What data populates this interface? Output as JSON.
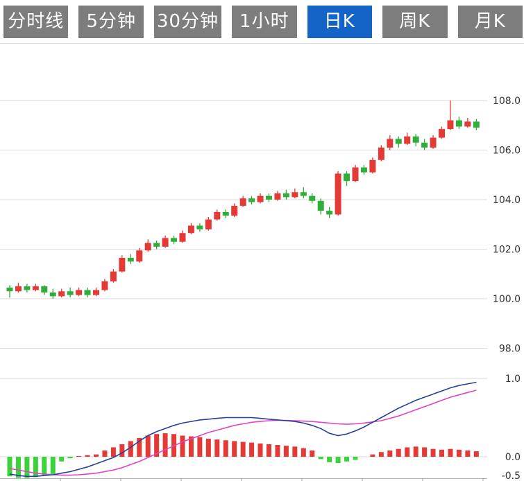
{
  "toolbar": {
    "tabs": [
      {
        "label": "分时线",
        "active": false
      },
      {
        "label": "5分钟",
        "active": false
      },
      {
        "label": "30分钟",
        "active": false
      },
      {
        "label": "1小时",
        "active": false
      },
      {
        "label": "日K",
        "active": true
      },
      {
        "label": "周K",
        "active": false
      },
      {
        "label": "月K",
        "active": false
      }
    ],
    "active_bg": "#1464c8",
    "inactive_bg": "#7d7d7d",
    "text_color": "#ffffff"
  },
  "chart_data": {
    "type": "candlestick+macd",
    "convention": "red = up (close >= open), green = down",
    "price_axis": {
      "values": [
        108,
        106,
        104,
        102,
        100,
        98
      ],
      "labels": [
        "108.0",
        "106.0",
        "104.0",
        "102.0",
        "100.0",
        "98.0"
      ]
    },
    "macd_axis": {
      "values": [
        1.0,
        0.0,
        -0.5
      ],
      "labels": [
        "1.0",
        "0.0",
        "-0.5"
      ]
    },
    "colors": {
      "up": "#e53935",
      "down": "#2fae3a",
      "hist_up": "#e53935",
      "hist_down": "#3bd23b",
      "dif_line": "#24409a",
      "dea_line": "#e044c4",
      "grid": "#d9d9d9",
      "axis": "#b5b5b5",
      "label": "#333333"
    },
    "candles": [
      [
        100.45,
        100.55,
        100.05,
        100.3
      ],
      [
        100.3,
        100.65,
        100.25,
        100.5
      ],
      [
        100.5,
        100.6,
        100.25,
        100.35
      ],
      [
        100.35,
        100.6,
        100.3,
        100.5
      ],
      [
        100.5,
        100.55,
        100.15,
        100.25
      ],
      [
        100.25,
        100.4,
        100.0,
        100.1
      ],
      [
        100.1,
        100.4,
        100.05,
        100.3
      ],
      [
        100.3,
        100.45,
        100.05,
        100.15
      ],
      [
        100.15,
        100.45,
        100.1,
        100.35
      ],
      [
        100.35,
        100.45,
        100.05,
        100.15
      ],
      [
        100.15,
        100.45,
        100.1,
        100.35
      ],
      [
        100.35,
        100.8,
        100.3,
        100.7
      ],
      [
        100.7,
        101.2,
        100.65,
        101.1
      ],
      [
        101.1,
        101.75,
        101.05,
        101.65
      ],
      [
        101.65,
        101.8,
        101.4,
        101.5
      ],
      [
        101.5,
        102.05,
        101.45,
        101.95
      ],
      [
        101.95,
        102.4,
        101.9,
        102.25
      ],
      [
        102.25,
        102.35,
        102.0,
        102.1
      ],
      [
        102.1,
        102.55,
        102.05,
        102.45
      ],
      [
        102.45,
        102.55,
        102.2,
        102.3
      ],
      [
        102.3,
        102.75,
        102.25,
        102.65
      ],
      [
        102.65,
        103.05,
        102.6,
        102.95
      ],
      [
        102.95,
        103.05,
        102.7,
        102.8
      ],
      [
        102.8,
        103.3,
        102.75,
        103.2
      ],
      [
        103.2,
        103.6,
        103.15,
        103.5
      ],
      [
        103.5,
        103.6,
        103.25,
        103.35
      ],
      [
        103.35,
        103.85,
        103.3,
        103.75
      ],
      [
        103.75,
        104.15,
        103.7,
        104.05
      ],
      [
        104.05,
        104.15,
        103.8,
        103.9
      ],
      [
        103.9,
        104.25,
        103.85,
        104.15
      ],
      [
        104.15,
        104.25,
        103.9,
        104.0
      ],
      [
        104.0,
        104.35,
        103.95,
        104.25
      ],
      [
        104.25,
        104.4,
        104.0,
        104.1
      ],
      [
        104.1,
        104.45,
        104.05,
        104.3
      ],
      [
        104.3,
        104.5,
        104.05,
        104.15
      ],
      [
        104.15,
        104.25,
        103.85,
        103.95
      ],
      [
        103.95,
        104.05,
        103.4,
        103.55
      ],
      [
        103.55,
        103.7,
        103.25,
        103.4
      ],
      [
        103.4,
        105.15,
        103.35,
        105.05
      ],
      [
        105.05,
        105.15,
        104.55,
        104.75
      ],
      [
        104.75,
        105.4,
        104.7,
        105.3
      ],
      [
        105.3,
        105.4,
        105.0,
        105.1
      ],
      [
        105.1,
        105.7,
        105.05,
        105.6
      ],
      [
        105.6,
        106.2,
        105.55,
        106.1
      ],
      [
        106.1,
        106.6,
        106.0,
        106.45
      ],
      [
        106.45,
        106.55,
        106.1,
        106.25
      ],
      [
        106.25,
        106.7,
        106.2,
        106.55
      ],
      [
        106.55,
        106.65,
        106.15,
        106.3
      ],
      [
        106.3,
        106.45,
        106.0,
        106.1
      ],
      [
        106.1,
        106.6,
        106.05,
        106.5
      ],
      [
        106.5,
        106.95,
        106.45,
        106.85
      ],
      [
        106.85,
        108.0,
        106.8,
        107.2
      ],
      [
        107.2,
        107.35,
        106.85,
        106.95
      ],
      [
        106.95,
        107.3,
        106.9,
        107.15
      ],
      [
        107.15,
        107.25,
        106.8,
        106.9
      ]
    ],
    "macd": {
      "dif": [
        -0.22,
        -0.24,
        -0.25,
        -0.25,
        -0.24,
        -0.23,
        -0.21,
        -0.19,
        -0.16,
        -0.13,
        -0.09,
        -0.05,
        -0.01,
        0.05,
        0.12,
        0.2,
        0.27,
        0.32,
        0.36,
        0.4,
        0.43,
        0.45,
        0.47,
        0.48,
        0.49,
        0.5,
        0.5,
        0.5,
        0.5,
        0.49,
        0.48,
        0.47,
        0.46,
        0.45,
        0.43,
        0.4,
        0.36,
        0.3,
        0.27,
        0.29,
        0.33,
        0.38,
        0.44,
        0.5,
        0.56,
        0.62,
        0.67,
        0.72,
        0.76,
        0.8,
        0.84,
        0.88,
        0.91,
        0.93,
        0.95
      ],
      "dea": [
        -0.15,
        -0.17,
        -0.19,
        -0.21,
        -0.22,
        -0.23,
        -0.235,
        -0.235,
        -0.23,
        -0.22,
        -0.21,
        -0.19,
        -0.17,
        -0.14,
        -0.1,
        -0.06,
        -0.01,
        0.04,
        0.09,
        0.14,
        0.19,
        0.23,
        0.27,
        0.31,
        0.34,
        0.37,
        0.4,
        0.42,
        0.44,
        0.45,
        0.46,
        0.465,
        0.465,
        0.46,
        0.455,
        0.45,
        0.44,
        0.43,
        0.42,
        0.415,
        0.42,
        0.43,
        0.445,
        0.46,
        0.49,
        0.52,
        0.56,
        0.6,
        0.64,
        0.68,
        0.72,
        0.76,
        0.79,
        0.82,
        0.85
      ],
      "histogram": [
        -0.25,
        -0.27,
        -0.27,
        -0.26,
        -0.24,
        -0.22,
        -0.06,
        -0.02,
        0.01,
        0.02,
        0.03,
        0.08,
        0.12,
        0.16,
        0.2,
        0.24,
        0.27,
        0.29,
        0.3,
        0.29,
        0.27,
        0.26,
        0.25,
        0.23,
        0.22,
        0.21,
        0.2,
        0.19,
        0.18,
        0.17,
        0.16,
        0.15,
        0.14,
        0.13,
        0.11,
        0.08,
        -0.03,
        -0.07,
        -0.08,
        -0.06,
        -0.04,
        0.0,
        0.03,
        0.06,
        0.08,
        0.1,
        0.12,
        0.13,
        0.12,
        0.1,
        0.09,
        0.1,
        0.09,
        0.08,
        0.07
      ]
    }
  }
}
